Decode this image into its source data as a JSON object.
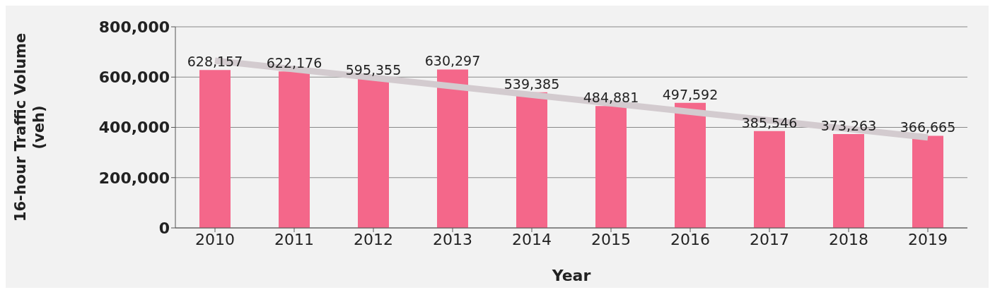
{
  "chart_data": {
    "type": "bar",
    "xlabel": "Year",
    "ylabel": "16-hour Traffic Volume (veh)",
    "categories": [
      "2010",
      "2011",
      "2012",
      "2013",
      "2014",
      "2015",
      "2016",
      "2017",
      "2018",
      "2019"
    ],
    "series": [
      {
        "color": "#f4678a",
        "values": [
          628157,
          622176,
          595355,
          630297,
          539385,
          484881,
          497592,
          385546,
          373263,
          366665
        ],
        "value_labels": [
          "628,157",
          "622,176",
          "595,355",
          "630,297",
          "539,385",
          "484,881",
          "497,592",
          "385,546",
          "373,263",
          "366,665"
        ]
      },
      {
        "type": "line",
        "color": "#d3cbcf",
        "values": [
          665000,
          null,
          null,
          null,
          null,
          null,
          null,
          null,
          null,
          360000
        ]
      }
    ],
    "ylim": [
      0,
      800000
    ],
    "yticks": [
      0,
      {
        "value": 200000,
        "label": "200,000"
      },
      {
        "value": 400000,
        "label": "400,000"
      },
      {
        "value": 600000,
        "label": "600,000"
      },
      {
        "value": 800000,
        "label": "800,000"
      }
    ],
    "grid": "y"
  }
}
